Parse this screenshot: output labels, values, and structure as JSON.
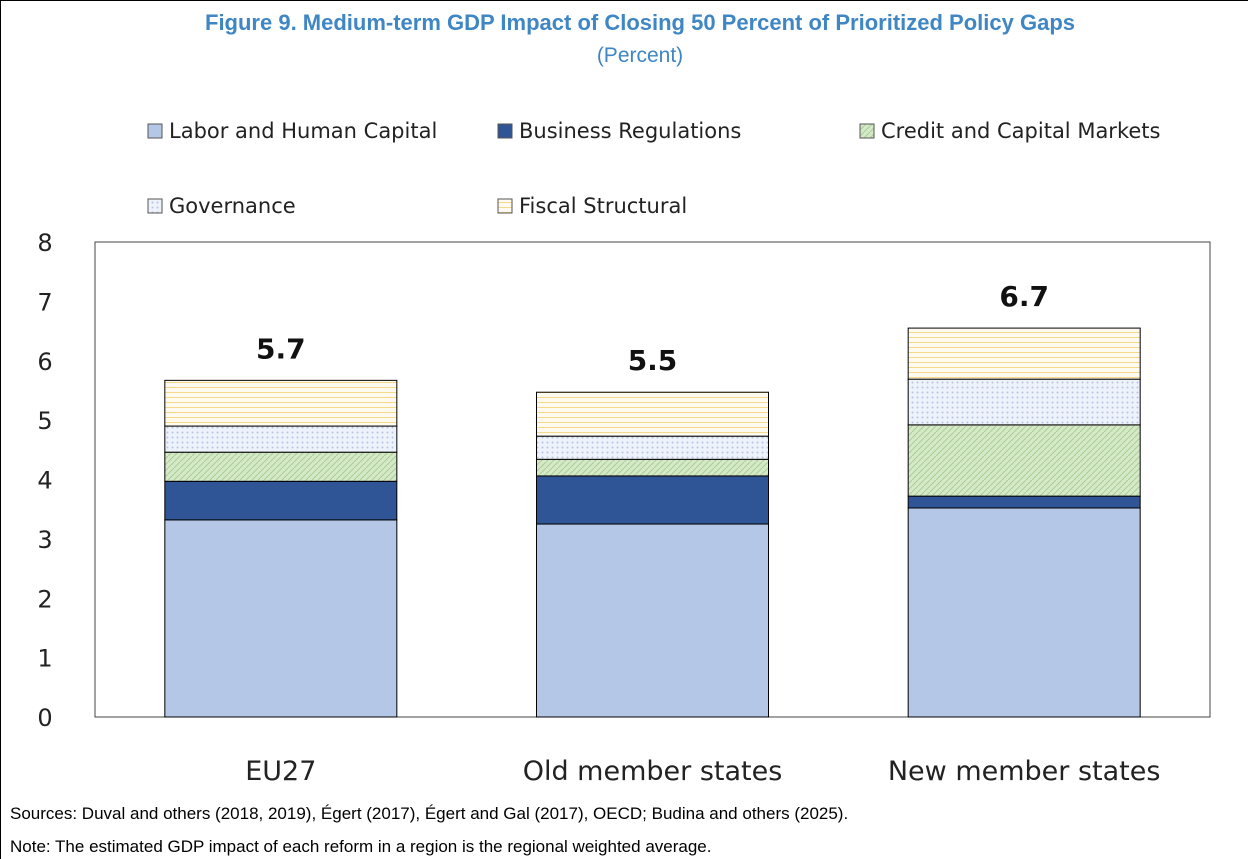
{
  "chart_data": {
    "type": "stacked_bar",
    "title": "Figure 9. Medium-term GDP Impact of Closing 50 Percent of Prioritized Policy Gaps",
    "subtitle": "(Percent)",
    "categories": [
      "EU27",
      "Old member states",
      "New member states"
    ],
    "series": [
      {
        "name": "Labor and Human Capital",
        "color": "#b4c7e7",
        "values": [
          3.32,
          3.25,
          3.52
        ]
      },
      {
        "name": "Business Regulations",
        "color": "#2f5597",
        "values": [
          0.65,
          0.81,
          0.2
        ]
      },
      {
        "name": "Credit and Capital Markets",
        "color": "#c5e0b4",
        "values": [
          0.49,
          0.28,
          1.2
        ]
      },
      {
        "name": "Governance",
        "color": "#dae3f3",
        "values": [
          0.44,
          0.39,
          0.77
        ]
      },
      {
        "name": "Fiscal Structural",
        "color": "#fff2cc",
        "values": [
          0.77,
          0.74,
          0.86
        ]
      }
    ],
    "totals": [
      5.7,
      5.5,
      6.7
    ],
    "ylim": [
      0,
      8
    ],
    "yticks": [
      0,
      1,
      2,
      3,
      4,
      5,
      6,
      7,
      8
    ],
    "sources": "Sources: Duval and others (2018, 2019), Égert (2017), Égert and Gal (2017), OECD; Budina and others (2025).",
    "note": "Note: The estimated GDP impact of each reform in a region is the regional weighted average."
  }
}
